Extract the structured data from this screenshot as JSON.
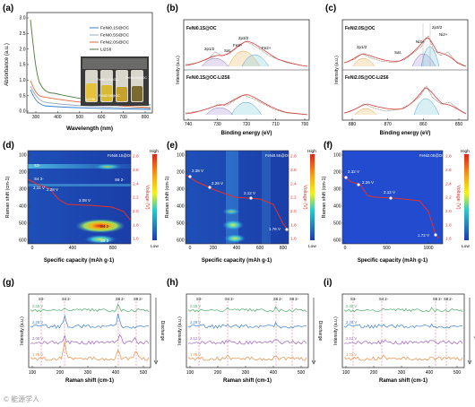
{
  "panels": {
    "a": {
      "label": "(a)",
      "ylabel": "Absorbance (a.u.)",
      "xlabel": "Wavelength (nm)",
      "yticks": [
        "0.0",
        "0.5",
        "1.0",
        "1.5",
        "2.0",
        "2.5",
        "3.0"
      ],
      "xticks": [
        "300",
        "400",
        "500",
        "600",
        "700",
        "800"
      ],
      "legend": [
        {
          "name": "FeNi0.1S@OC",
          "color": "#3a7fd0"
        },
        {
          "name": "FeNi0.5S@OC",
          "color": "#9aa9b8"
        },
        {
          "name": "FeNi2.0S@OC",
          "color": "#e2683a"
        },
        {
          "name": "Li2S6",
          "color": "#4f7a3c"
        }
      ],
      "photo_labels": [
        "Li2S6",
        "FeNi0.1S@OC",
        "FeNi2.0S@OC",
        "FeNi0.5S@OC"
      ]
    },
    "b": {
      "label": "(b)",
      "ylabel": "Intensity (a.u.)",
      "xlabel": "Binding energy (eV)",
      "xticks": [
        "740",
        "730",
        "720",
        "710",
        "700"
      ],
      "title_top": "FeNi0.1S@OC",
      "title_bottom": "FeNi0.1S@OC-Li2S6",
      "peaks": [
        "2p1/2",
        "Sat.",
        "2p3/2",
        "Fe3+",
        "Fe2+"
      ]
    },
    "c": {
      "label": "(c)",
      "ylabel": "Intensity (a.u.)",
      "xlabel": "Binding energy (eV)",
      "xticks": [
        "880",
        "870",
        "860",
        "850"
      ],
      "title_top": "FeNi2.0S@OC",
      "title_bottom": "FeNi2.0S@OC-Li2S6",
      "peaks": [
        "2p1/2",
        "Sat.",
        "Ni3+",
        "2p3/2",
        "Ni2+"
      ]
    },
    "d": {
      "label": "(d)",
      "ylabel": "Raman shift (cm-1)",
      "xlabel": "Specific capacity (mAh g-1)",
      "yticks": [
        "100",
        "200",
        "300",
        "400",
        "500",
        "600"
      ],
      "xticks": [
        "0",
        "400",
        "800"
      ],
      "vticks": [
        "2.8",
        "2.6",
        "2.4",
        "2.2",
        "2.0",
        "1.8",
        "1.6"
      ],
      "vlabel": "Voltage (V)",
      "cbar": [
        "High",
        "Low"
      ],
      "corner": "FeNi0.1S@OC",
      "voltage_labels": [
        "2.31 V",
        "2.28 V",
        "2.08 V"
      ],
      "species": [
        "S3-",
        "S4 2-",
        "S6 2-",
        "S4 2-",
        "S8 2-"
      ]
    },
    "e": {
      "label": "(e)",
      "ylabel": "Raman shift (cm-1)",
      "xlabel": "Specific capacity (mAh g-1)",
      "yticks": [
        "100",
        "200",
        "300",
        "400",
        "500",
        "600"
      ],
      "xticks": [
        "0",
        "200",
        "400",
        "600",
        "800"
      ],
      "vticks": [
        "2.8",
        "2.6",
        "2.4",
        "2.2",
        "2.0",
        "1.8",
        "1.6"
      ],
      "vlabel": "Voltage (V)",
      "cbar": [
        "High",
        "Low"
      ],
      "corner": "FeNi0.5S@OC",
      "voltage_labels": [
        "2.38 V",
        "2.28 V",
        "2.12 V",
        "1.76 V"
      ]
    },
    "f": {
      "label": "(f)",
      "ylabel": "Raman shift (cm-1)",
      "xlabel": "Specific capacity (mAh g-1)",
      "yticks": [
        "100",
        "200",
        "300",
        "400",
        "500",
        "600"
      ],
      "xticks": [
        "0",
        "500",
        "1000"
      ],
      "vticks": [
        "2.8",
        "2.6",
        "2.4",
        "2.2",
        "2.0",
        "1.8",
        "1.6"
      ],
      "vlabel": "Voltage (V)",
      "cbar": [
        "High",
        "Low"
      ],
      "corner": "FeNi2.0S@OC",
      "voltage_labels": [
        "2.32 V",
        "2.26 V",
        "2.12 V",
        "1.72 V"
      ]
    },
    "g": {
      "label": "(g)",
      "ylabel": "Intensity (a.u.)",
      "xlabel": "Raman shift (cm-1)",
      "xticks": [
        "100",
        "200",
        "300",
        "400",
        "500"
      ],
      "markers": [
        "S3-",
        "S4 2-",
        "S6 2-",
        "S8 2-"
      ],
      "traces": [
        "2.35 V",
        "2.28 V",
        "2.08 V",
        "1.78 V"
      ],
      "side": "Discharge"
    },
    "h": {
      "label": "(h)",
      "ylabel": "Intensity (a.u.)",
      "xlabel": "Raman shift (cm-1)",
      "xticks": [
        "100",
        "200",
        "300",
        "400",
        "500"
      ],
      "markers": [
        "S3-",
        "S4 2-",
        "S6 2-",
        "S8 2-"
      ],
      "traces": [
        "2.35 V",
        "2.29 V",
        "2.12 V",
        "1.76 V"
      ],
      "side": "Discharge"
    },
    "i": {
      "label": "(i)",
      "ylabel": "Intensity (a.u.)",
      "xlabel": "Raman shift (cm-1)",
      "xticks": [
        "100",
        "200",
        "300",
        "400",
        "500"
      ],
      "markers": [
        "S3-",
        "S4 2-",
        "S6 2-",
        "S8 2-"
      ],
      "traces": [
        "2.35 V",
        "2.29 V",
        "2.12 V",
        "1.72 V"
      ],
      "side": "Discharge"
    }
  },
  "watermark": "© 能源学人",
  "colors": {
    "green": "#4fae6b",
    "blue": "#3a7fd0",
    "purple": "#a060c8",
    "orange": "#f08a3c",
    "fit_red": "#d83a3a",
    "dashed": "#e2527a",
    "voltage_line": "#e2332b"
  }
}
